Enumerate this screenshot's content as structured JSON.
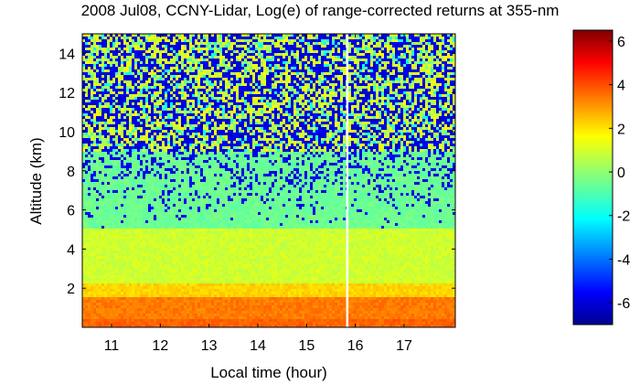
{
  "chart_data": {
    "type": "heatmap",
    "title": "2008 Jul08, CCNY-Lidar, Log(e) of range-corrected returns at 355-nm",
    "xlabel": "Local time (hour)",
    "ylabel": "Altitude (km)",
    "xlim": [
      10.4,
      18.05
    ],
    "ylim": [
      0,
      15
    ],
    "x_ticks": [
      11,
      12,
      13,
      14,
      15,
      16,
      17
    ],
    "y_ticks": [
      2,
      4,
      6,
      8,
      10,
      12,
      14
    ],
    "colorbar": {
      "range": [
        -7,
        6.5
      ],
      "ticks": [
        -6,
        -4,
        -2,
        0,
        2,
        4,
        6
      ],
      "colormap": "jet"
    },
    "layers": [
      {
        "altitude_range_km": [
          0,
          0.4
        ],
        "log_return": 3.5
      },
      {
        "altitude_range_km": [
          0.4,
          1.5
        ],
        "log_return": 3.2
      },
      {
        "altitude_range_km": [
          1.5,
          2.2
        ],
        "log_return": 2.0
      },
      {
        "altitude_range_km": [
          2.2,
          5.0
        ],
        "log_return": 0.8
      },
      {
        "altitude_range_km": [
          5.0,
          9.0
        ],
        "log_return": -0.5
      },
      {
        "altitude_range_km": [
          9.0,
          15.0
        ],
        "log_return": "noisy"
      }
    ],
    "data_gap_time": 15.83,
    "grid": false
  }
}
